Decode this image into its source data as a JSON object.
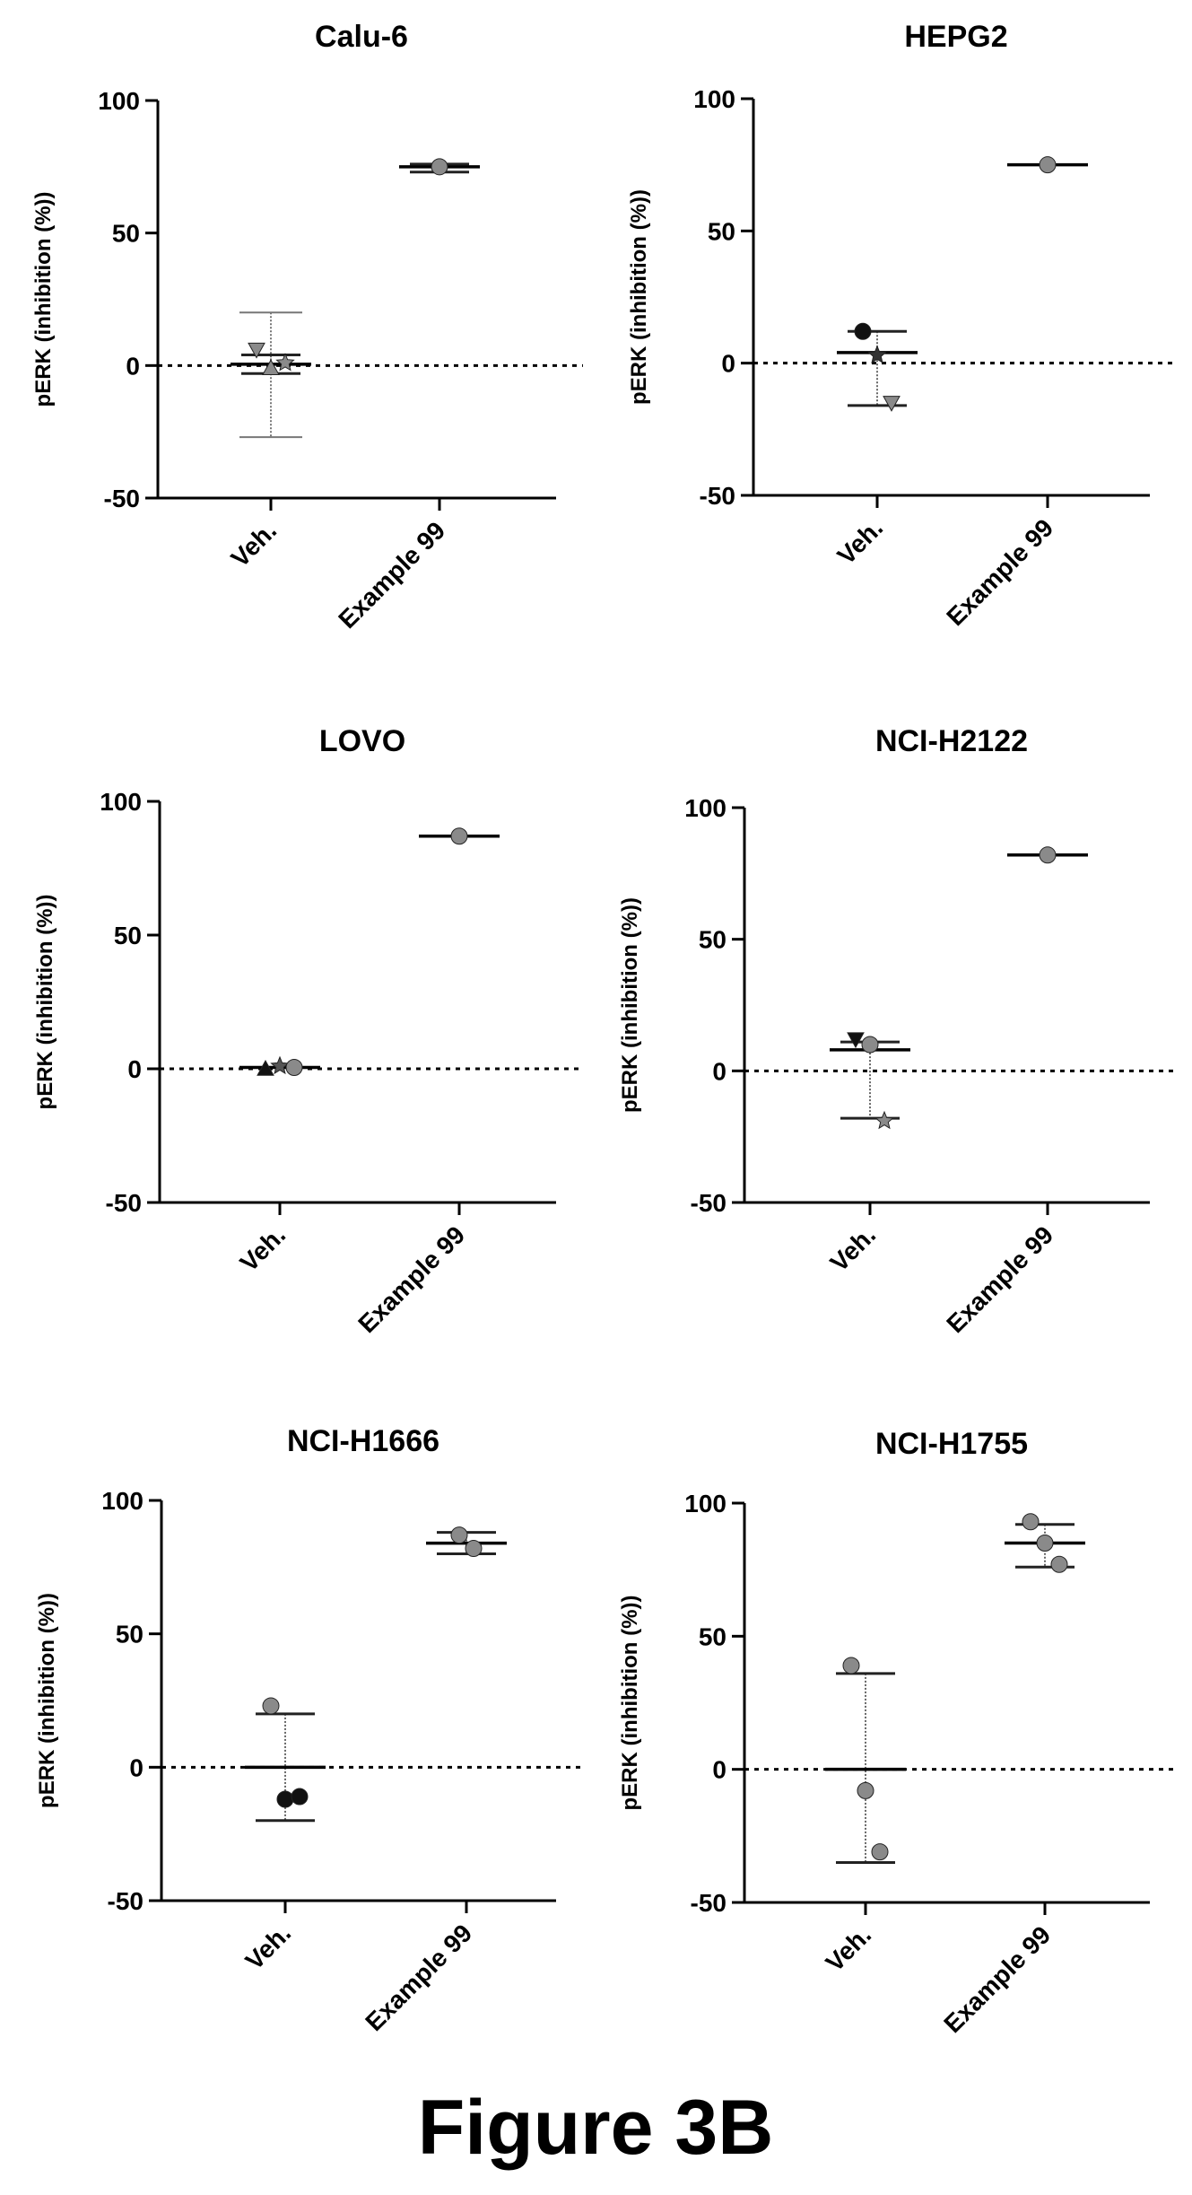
{
  "figure_title": "Figure 3B",
  "chart_data": [
    {
      "type": "scatter",
      "title": "Calu-6",
      "ylabel": "pERK (inhibition (%))",
      "categories": [
        "Veh.",
        "Example 99"
      ],
      "ylim": [
        -50,
        100
      ],
      "yticks": [
        100,
        50,
        0,
        -50
      ],
      "reference_line_y": 0,
      "groups": [
        {
          "category": "Veh.",
          "mean": 0.5,
          "sd_upper": 4,
          "sd_lower": -3,
          "range_upper": 20,
          "range_lower": -27,
          "points": [
            {
              "y": 6,
              "marker": "triangle-down",
              "color": "#8a8a8a"
            },
            {
              "y": -1,
              "marker": "triangle-up",
              "color": "#8a8a8a"
            },
            {
              "y": 1,
              "marker": "star",
              "color": "#8a8a8a"
            }
          ]
        },
        {
          "category": "Example 99",
          "mean": 75,
          "sd_upper": 76,
          "sd_lower": 73,
          "points": [
            {
              "y": 75,
              "marker": "circle",
              "color": "#8a8a8a"
            }
          ]
        }
      ]
    },
    {
      "type": "scatter",
      "title": "HEPG2",
      "ylabel": "pERK (inhibition (%))",
      "categories": [
        "Veh.",
        "Example 99"
      ],
      "ylim": [
        -50,
        100
      ],
      "yticks": [
        100,
        50,
        0,
        -50
      ],
      "reference_line_y": 0,
      "groups": [
        {
          "category": "Veh.",
          "mean": 4,
          "sd_upper": 12,
          "sd_lower": -16,
          "points": [
            {
              "y": 12,
              "marker": "circle",
              "color": "#111111"
            },
            {
              "y": 3,
              "marker": "star",
              "color": "#333333"
            },
            {
              "y": -15,
              "marker": "triangle-down",
              "color": "#8a8a8a"
            }
          ]
        },
        {
          "category": "Example 99",
          "mean": 75,
          "points": [
            {
              "y": 75,
              "marker": "circle",
              "color": "#8a8a8a"
            }
          ]
        }
      ]
    },
    {
      "type": "scatter",
      "title": "LOVO",
      "ylabel": "pERK (inhibition (%))",
      "categories": [
        "Veh.",
        "Example 99"
      ],
      "ylim": [
        -50,
        100
      ],
      "yticks": [
        100,
        50,
        0,
        -50
      ],
      "reference_line_y": 0,
      "groups": [
        {
          "category": "Veh.",
          "mean": 0.5,
          "points": [
            {
              "y": 0,
              "marker": "triangle-up",
              "color": "#111111"
            },
            {
              "y": 1,
              "marker": "star",
              "color": "#555555"
            },
            {
              "y": 0.5,
              "marker": "circle",
              "color": "#8a8a8a"
            }
          ]
        },
        {
          "category": "Example 99",
          "mean": 87,
          "points": [
            {
              "y": 87,
              "marker": "circle",
              "color": "#8a8a8a"
            }
          ]
        }
      ]
    },
    {
      "type": "scatter",
      "title": "NCI-H2122",
      "ylabel": "pERK (inhibition (%))",
      "categories": [
        "Veh.",
        "Example 99"
      ],
      "ylim": [
        -50,
        100
      ],
      "yticks": [
        100,
        50,
        0,
        -50
      ],
      "reference_line_y": 0,
      "groups": [
        {
          "category": "Veh.",
          "mean": 8,
          "sd_upper": 11,
          "sd_lower": -18,
          "points": [
            {
              "y": 12,
              "marker": "triangle-down",
              "color": "#111111"
            },
            {
              "y": 10,
              "marker": "circle",
              "color": "#8a8a8a"
            },
            {
              "y": -19,
              "marker": "star",
              "color": "#8a8a8a"
            }
          ]
        },
        {
          "category": "Example 99",
          "mean": 82,
          "points": [
            {
              "y": 82,
              "marker": "circle",
              "color": "#8a8a8a"
            }
          ]
        }
      ]
    },
    {
      "type": "scatter",
      "title": "NCI-H1666",
      "ylabel": "pERK (inhibition (%))",
      "categories": [
        "Veh.",
        "Example 99"
      ],
      "ylim": [
        -50,
        100
      ],
      "yticks": [
        100,
        50,
        0,
        -50
      ],
      "reference_line_y": 0,
      "groups": [
        {
          "category": "Veh.",
          "mean": 0,
          "sd_upper": 20,
          "sd_lower": -20,
          "points": [
            {
              "y": 23,
              "marker": "circle",
              "color": "#8a8a8a"
            },
            {
              "y": -12,
              "marker": "circle",
              "color": "#111111"
            },
            {
              "y": -11,
              "marker": "circle",
              "color": "#111111"
            }
          ]
        },
        {
          "category": "Example 99",
          "mean": 84,
          "sd_upper": 88,
          "sd_lower": 80,
          "points": [
            {
              "y": 87,
              "marker": "circle",
              "color": "#8a8a8a"
            },
            {
              "y": 82,
              "marker": "circle",
              "color": "#8a8a8a"
            }
          ]
        }
      ]
    },
    {
      "type": "scatter",
      "title": "NCI-H1755",
      "ylabel": "pERK (inhibition (%))",
      "categories": [
        "Veh.",
        "Example 99"
      ],
      "ylim": [
        -50,
        100
      ],
      "yticks": [
        100,
        50,
        0,
        -50
      ],
      "reference_line_y": 0,
      "groups": [
        {
          "category": "Veh.",
          "mean": 0,
          "sd_upper": 36,
          "sd_lower": -35,
          "points": [
            {
              "y": 39,
              "marker": "circle",
              "color": "#8a8a8a"
            },
            {
              "y": -8,
              "marker": "circle",
              "color": "#8a8a8a"
            },
            {
              "y": -31,
              "marker": "circle",
              "color": "#8a8a8a"
            }
          ]
        },
        {
          "category": "Example 99",
          "mean": 85,
          "sd_upper": 92,
          "sd_lower": 76,
          "points": [
            {
              "y": 93,
              "marker": "circle",
              "color": "#8a8a8a"
            },
            {
              "y": 85,
              "marker": "circle",
              "color": "#8a8a8a"
            },
            {
              "y": 77,
              "marker": "circle",
              "color": "#8a8a8a"
            }
          ]
        }
      ]
    }
  ]
}
